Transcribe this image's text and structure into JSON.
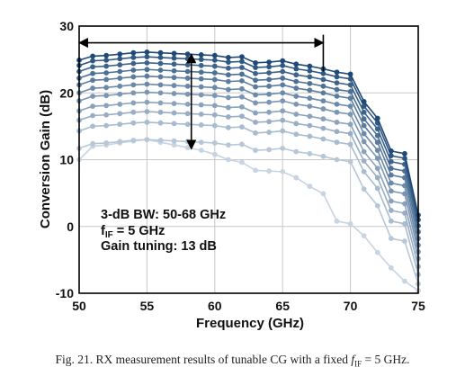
{
  "chart_data": {
    "type": "line",
    "xlabel": "Frequency (GHz)",
    "ylabel": "Conversion Gain (dB)",
    "xlim": [
      50,
      75
    ],
    "ylim": [
      -10,
      30
    ],
    "xticks": [
      50,
      55,
      60,
      65,
      70,
      75
    ],
    "yticks": [
      -10,
      0,
      10,
      20,
      30
    ],
    "grid": true,
    "x": [
      50,
      51,
      52,
      53,
      54,
      55,
      56,
      57,
      58,
      59,
      60,
      61,
      62,
      63,
      64,
      65,
      66,
      67,
      68,
      69,
      70,
      71,
      72,
      73,
      74,
      75
    ],
    "series": [
      {
        "values": [
          24.9,
          25.5,
          25.6,
          25.8,
          26.0,
          26.1,
          26.0,
          25.9,
          25.8,
          25.7,
          25.6,
          25.3,
          25.4,
          24.5,
          24.6,
          24.8,
          24.3,
          24.0,
          23.6,
          23.1,
          22.8,
          18.7,
          16.2,
          11.3,
          10.9,
          1.7
        ]
      },
      {
        "values": [
          24.1,
          24.8,
          24.9,
          25.1,
          25.3,
          25.4,
          25.3,
          25.2,
          25.1,
          25.0,
          24.9,
          24.6,
          24.7,
          23.8,
          23.9,
          24.1,
          23.6,
          23.3,
          22.9,
          22.4,
          22.1,
          18.0,
          15.5,
          10.6,
          10.2,
          1.0
        ]
      },
      {
        "values": [
          23.2,
          23.9,
          24.0,
          24.2,
          24.4,
          24.5,
          24.4,
          24.3,
          24.2,
          24.1,
          24.0,
          23.7,
          23.8,
          22.9,
          23.0,
          23.2,
          22.7,
          22.4,
          22.0,
          21.5,
          21.2,
          17.1,
          14.6,
          9.7,
          9.3,
          0.1
        ]
      },
      {
        "values": [
          22.2,
          22.9,
          23.0,
          23.2,
          23.4,
          23.5,
          23.4,
          23.3,
          23.2,
          23.1,
          23.0,
          22.7,
          22.8,
          21.9,
          22.0,
          22.2,
          21.7,
          21.4,
          21.0,
          20.5,
          20.2,
          16.1,
          13.6,
          8.7,
          8.3,
          -0.8
        ]
      },
      {
        "values": [
          21.2,
          21.9,
          22.0,
          22.2,
          22.4,
          22.5,
          22.4,
          22.3,
          22.2,
          22.1,
          22.0,
          21.7,
          21.8,
          20.9,
          21.0,
          21.2,
          20.7,
          20.4,
          20.0,
          19.5,
          19.2,
          15.1,
          12.6,
          7.7,
          7.3,
          -1.8
        ]
      },
      {
        "values": [
          20.0,
          20.7,
          20.8,
          21.0,
          21.2,
          21.3,
          21.2,
          21.1,
          21.0,
          20.9,
          20.8,
          20.5,
          20.6,
          19.7,
          19.8,
          20.0,
          19.5,
          19.2,
          18.8,
          18.3,
          18.0,
          13.9,
          11.4,
          6.5,
          6.1,
          -2.8
        ]
      },
      {
        "values": [
          18.8,
          19.5,
          19.6,
          19.8,
          20.0,
          20.1,
          20.0,
          19.9,
          19.8,
          19.7,
          19.6,
          19.3,
          19.4,
          18.5,
          18.6,
          18.8,
          18.3,
          18.0,
          17.6,
          17.1,
          16.8,
          12.7,
          10.2,
          5.3,
          4.9,
          -3.8
        ]
      },
      {
        "values": [
          17.3,
          18.0,
          18.1,
          18.3,
          18.5,
          18.6,
          18.5,
          18.4,
          18.3,
          18.2,
          18.1,
          17.8,
          17.9,
          17.0,
          17.1,
          17.3,
          16.8,
          16.5,
          16.1,
          15.6,
          15.3,
          11.2,
          8.7,
          3.8,
          3.4,
          -4.8
        ]
      },
      {
        "values": [
          15.9,
          16.6,
          16.7,
          16.9,
          17.1,
          17.2,
          17.1,
          17.0,
          16.9,
          16.8,
          16.7,
          16.4,
          16.5,
          15.6,
          15.7,
          15.9,
          15.4,
          15.1,
          14.7,
          14.2,
          13.9,
          9.8,
          7.3,
          2.4,
          2.0,
          -6.0
        ]
      },
      {
        "values": [
          14.3,
          15.0,
          15.1,
          15.3,
          15.5,
          15.6,
          15.5,
          15.4,
          15.3,
          15.2,
          15.1,
          14.8,
          14.9,
          14.0,
          14.1,
          14.3,
          13.8,
          13.5,
          13.1,
          12.6,
          12.3,
          8.2,
          5.7,
          0.8,
          0.4,
          -7.2
        ]
      },
      {
        "values": [
          11.7,
          12.4,
          12.5,
          12.7,
          12.9,
          13.0,
          12.9,
          12.8,
          12.7,
          12.6,
          12.5,
          12.2,
          12.3,
          11.4,
          11.5,
          11.7,
          11.2,
          10.9,
          10.5,
          10.0,
          9.7,
          5.6,
          3.1,
          -1.8,
          -2.2,
          -8.6
        ]
      },
      {
        "values": [
          10.0,
          12.0,
          12.2,
          12.5,
          12.8,
          13.0,
          12.6,
          12.2,
          11.8,
          11.4,
          10.8,
          10.0,
          9.6,
          8.4,
          8.3,
          8.2,
          7.3,
          6.0,
          4.9,
          0.8,
          0.4,
          -1.4,
          -3.9,
          -6.2,
          -8.2,
          -9.6
        ]
      }
    ],
    "annotations": {
      "bw_text": "3-dB BW: 50-68 GHz",
      "fif_f": "f",
      "fif_sub": "IF",
      "fif_rest": " = 5 GHz",
      "tuning_text": "Gain tuning: 13 dB"
    },
    "bandwidth_arrow": {
      "from": 50,
      "to": 68,
      "at": 27.5
    },
    "tuning_arrow": {
      "at": 59,
      "from": 25.8,
      "to": 11.6
    },
    "colors": {
      "darkest": "#1f4a78",
      "lightest": "#c7d4e2",
      "grid": "#c8c8c8",
      "axis": "#000000"
    }
  },
  "caption": {
    "prefix": "Fig. 21.  RX measurement results of tunable CG with a fixed ",
    "var": "f",
    "sub": "IF",
    "suffix": " = 5 GHz."
  }
}
